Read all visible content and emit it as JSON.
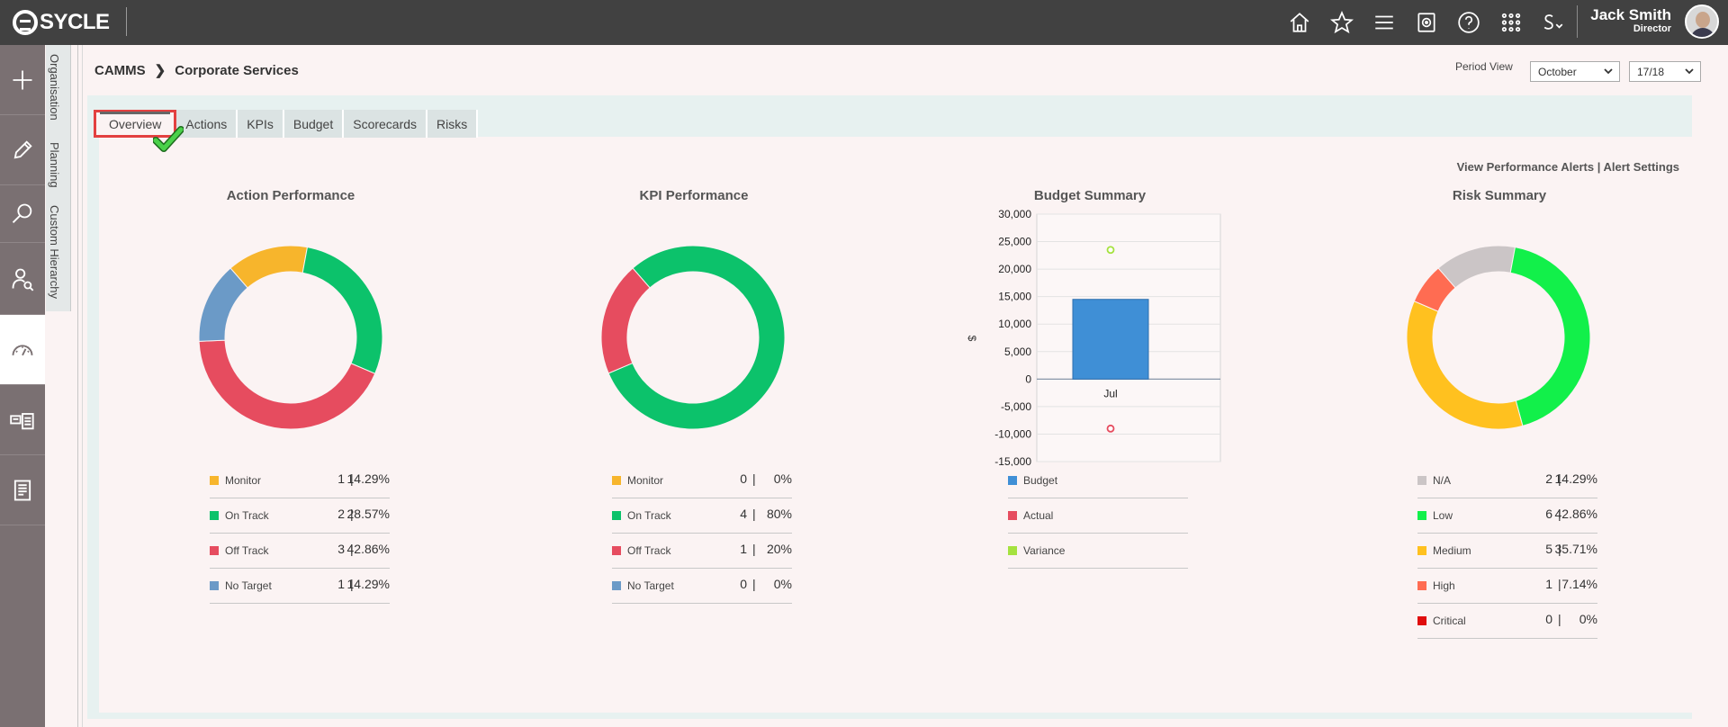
{
  "app": {
    "logo_text": "SYCLE"
  },
  "user": {
    "name": "Jack Smith",
    "role": "Director"
  },
  "topnav": [
    "home-icon",
    "star-icon",
    "menu-icon",
    "target-icon",
    "help-icon",
    "apps-grid-icon",
    "sycle-menu-icon"
  ],
  "rail": [
    "add-icon",
    "edit-icon",
    "search-icon",
    "user-search-icon",
    "dashboard-icon",
    "card-list-icon",
    "document-icon"
  ],
  "vertical_tabs": [
    "Organisation",
    "Planning",
    "Custom Hierarchy"
  ],
  "breadcrumb": {
    "root": "CAMMS",
    "current": "Corporate Services"
  },
  "period": {
    "label": "Period View",
    "month": "October",
    "year": "17/18"
  },
  "tabs": [
    "Overview",
    "Actions",
    "KPIs",
    "Budget",
    "Scorecards",
    "Risks"
  ],
  "alerts": {
    "view": "View Performance Alerts",
    "settings": "Alert Settings"
  },
  "colors": {
    "monitor": "#f7b52c",
    "on_track": "#0cc26b",
    "off_track": "#e64c5f",
    "no_target": "#6b9ac7",
    "budget": "#3f8fd6",
    "actual": "#e64c5f",
    "variance": "#a5e23f",
    "na": "#cbc5c6",
    "low": "#12f04a",
    "medium": "#ffc11f",
    "high": "#ff6c52",
    "critical": "#e00d0d"
  },
  "action_performance": {
    "title": "Action Performance",
    "items": [
      {
        "label": "Monitor",
        "count": "1",
        "pct": "14.29%"
      },
      {
        "label": "On Track",
        "count": "2",
        "pct": "28.57%"
      },
      {
        "label": "Off Track",
        "count": "3",
        "pct": "42.86%"
      },
      {
        "label": "No Target",
        "count": "1",
        "pct": "14.29%"
      }
    ]
  },
  "kpi_performance": {
    "title": "KPI Performance",
    "items": [
      {
        "label": "Monitor",
        "count": "0",
        "pct": "0%"
      },
      {
        "label": "On Track",
        "count": "4",
        "pct": "80%"
      },
      {
        "label": "Off Track",
        "count": "1",
        "pct": "20%"
      },
      {
        "label": "No Target",
        "count": "0",
        "pct": "0%"
      }
    ]
  },
  "budget_summary": {
    "title": "Budget Summary",
    "legend": [
      "Budget",
      "Actual",
      "Variance"
    ]
  },
  "risk_summary": {
    "title": "Risk Summary",
    "items": [
      {
        "label": "N/A",
        "count": "2",
        "pct": "14.29%"
      },
      {
        "label": "Low",
        "count": "6",
        "pct": "42.86%"
      },
      {
        "label": "Medium",
        "count": "5",
        "pct": "35.71%"
      },
      {
        "label": "High",
        "count": "1",
        "pct": "7.14%"
      },
      {
        "label": "Critical",
        "count": "0",
        "pct": "0%"
      }
    ]
  },
  "chart_data": [
    {
      "type": "pie",
      "title": "Action Performance",
      "categories": [
        "Monitor",
        "On Track",
        "Off Track",
        "No Target"
      ],
      "values": [
        1,
        2,
        3,
        1
      ]
    },
    {
      "type": "pie",
      "title": "KPI Performance",
      "categories": [
        "Monitor",
        "On Track",
        "Off Track",
        "No Target"
      ],
      "values": [
        0,
        4,
        1,
        0
      ]
    },
    {
      "type": "bar",
      "title": "Budget Summary",
      "categories": [
        "Jul"
      ],
      "series": [
        {
          "name": "Budget",
          "values": [
            14500
          ]
        },
        {
          "name": "Actual",
          "values": [
            -9000
          ]
        },
        {
          "name": "Variance",
          "values": [
            23500
          ]
        }
      ],
      "ylabel": "$",
      "ylim": [
        -15000,
        30000
      ],
      "yticks": [
        "30,000",
        "25,000",
        "20,000",
        "15,000",
        "10,000",
        "5,000",
        "0",
        "-5,000",
        "-10,000",
        "-15,000"
      ],
      "grid": true
    },
    {
      "type": "pie",
      "title": "Risk Summary",
      "categories": [
        "N/A",
        "Low",
        "Medium",
        "High",
        "Critical"
      ],
      "values": [
        2,
        6,
        5,
        1,
        0
      ]
    }
  ]
}
